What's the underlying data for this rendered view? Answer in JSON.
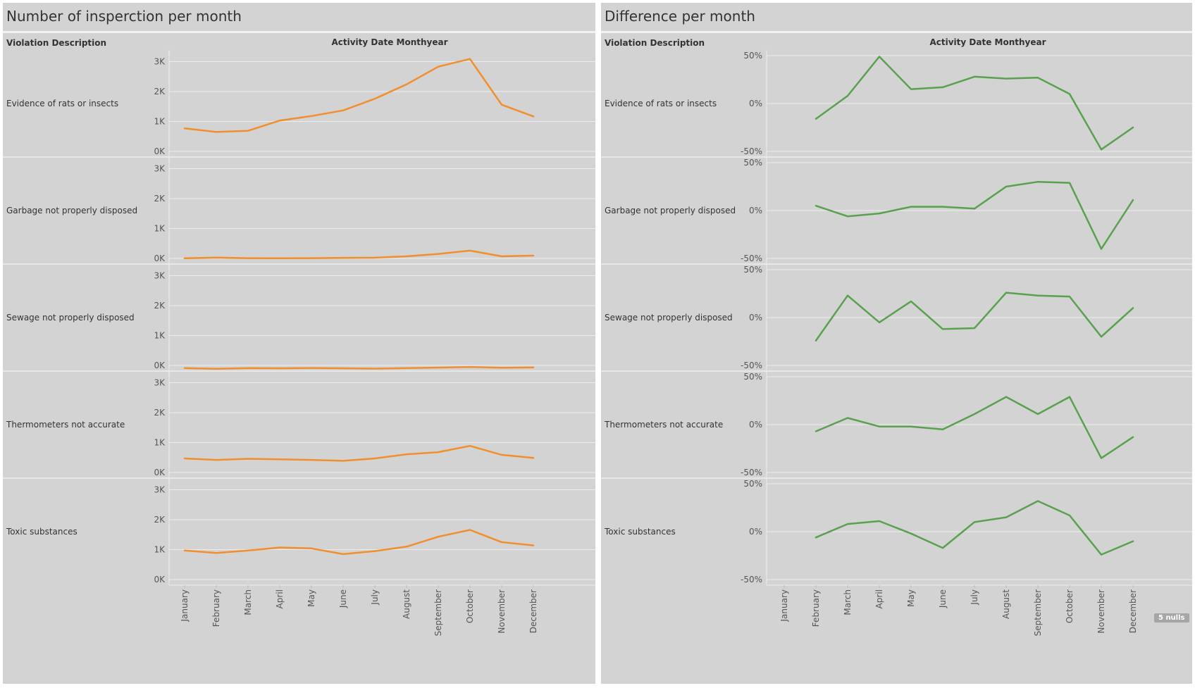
{
  "chart_data": [
    {
      "type": "line",
      "title": "Number of insperction per month",
      "row_header": "Violation Description",
      "column_header": "Activity Date Monthyear",
      "x": [
        "January",
        "February",
        "March",
        "April",
        "May",
        "June",
        "July",
        "August",
        "September",
        "October",
        "November",
        "December"
      ],
      "yticks": [
        "0K",
        "1K",
        "2K",
        "3K"
      ],
      "ylim": [
        0,
        3200
      ],
      "color": "#f28e2b",
      "series": [
        {
          "name": "Evidence of rats or insects",
          "values": [
            770,
            650,
            690,
            1030,
            1180,
            1370,
            1760,
            2240,
            2830,
            3090,
            1560,
            1170
          ]
        },
        {
          "name": "Garbage not properly disposed",
          "values": [
            5,
            30,
            10,
            5,
            10,
            20,
            25,
            70,
            150,
            260,
            70,
            95
          ]
        },
        {
          "name": "Sewage not properly disposed",
          "values": [
            -90,
            -110,
            -90,
            -95,
            -85,
            -95,
            -105,
            -90,
            -70,
            -50,
            -75,
            -65
          ]
        },
        {
          "name": "Thermometers not accurate",
          "values": [
            470,
            420,
            460,
            440,
            420,
            390,
            470,
            610,
            680,
            890,
            590,
            490
          ]
        },
        {
          "name": "Toxic substances",
          "values": [
            970,
            890,
            970,
            1070,
            1040,
            850,
            950,
            1100,
            1430,
            1660,
            1250,
            1140
          ]
        }
      ],
      "grid": true,
      "legend": "none"
    },
    {
      "type": "line",
      "title": "Difference per month",
      "row_header": "Violation Description",
      "column_header": "Activity Date Monthyear",
      "x": [
        "January",
        "February",
        "March",
        "April",
        "May",
        "June",
        "July",
        "August",
        "September",
        "October",
        "November",
        "December"
      ],
      "yticks": [
        "-50%",
        "0%",
        "50%"
      ],
      "ylim": [
        -50,
        50
      ],
      "color": "#59a14f",
      "series": [
        {
          "name": "Evidence of rats or insects",
          "values": [
            null,
            -16,
            8,
            49,
            15,
            17,
            28,
            26,
            27,
            10,
            -48,
            -25
          ]
        },
        {
          "name": "Garbage not properly disposed",
          "values": [
            null,
            5,
            -6,
            -3,
            4,
            4,
            2,
            25,
            30,
            29,
            -40,
            11
          ]
        },
        {
          "name": "Sewage not properly disposed",
          "values": [
            null,
            -24,
            23,
            -5,
            17,
            -12,
            -11,
            26,
            23,
            22,
            -20,
            10
          ]
        },
        {
          "name": "Thermometers not accurate",
          "values": [
            null,
            -7,
            7,
            -2,
            -2,
            -5,
            11,
            29,
            11,
            29,
            -35,
            -13
          ]
        },
        {
          "name": "Toxic substances",
          "values": [
            null,
            -6,
            8,
            11,
            -2,
            -17,
            10,
            15,
            32,
            17,
            -24,
            -10
          ]
        }
      ],
      "grid": true,
      "legend": "none",
      "null_indicator": "5 nulls"
    }
  ]
}
